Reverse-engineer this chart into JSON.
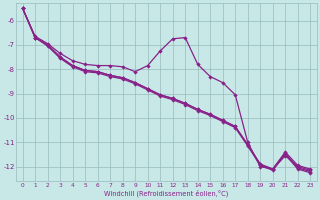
{
  "xlabel": "Windchill (Refroidissement éolien,°C)",
  "line_color": "#882288",
  "bg_color": "#c8e8e8",
  "grid_color": "#99bbbb",
  "xlim": [
    -0.5,
    23.5
  ],
  "ylim": [
    -12.6,
    -5.3
  ],
  "xticks": [
    0,
    1,
    2,
    3,
    4,
    5,
    6,
    7,
    8,
    9,
    10,
    11,
    12,
    13,
    14,
    15,
    16,
    17,
    18,
    19,
    20,
    21,
    22,
    23
  ],
  "yticks": [
    -12,
    -11,
    -10,
    -9,
    -8,
    -7,
    -6
  ],
  "series": [
    [
      -5.5,
      -6.7,
      -7.0,
      -7.5,
      -7.85,
      -8.05,
      -8.1,
      -8.25,
      -8.35,
      -8.55,
      -8.8,
      -9.05,
      -9.2,
      -9.4,
      -9.65,
      -9.85,
      -10.1,
      -10.35,
      -11.1,
      -11.9,
      -12.1,
      -11.55,
      -12.0,
      -12.15
    ],
    [
      -5.5,
      -6.7,
      -7.0,
      -7.5,
      -7.85,
      -8.05,
      -8.1,
      -8.25,
      -8.35,
      -8.55,
      -8.8,
      -9.05,
      -9.2,
      -9.4,
      -9.65,
      -9.85,
      -10.1,
      -10.35,
      -11.1,
      -11.9,
      -12.1,
      -11.45,
      -12.05,
      -12.2
    ],
    [
      -5.5,
      -6.7,
      -7.05,
      -7.55,
      -7.9,
      -8.1,
      -8.15,
      -8.3,
      -8.4,
      -8.6,
      -8.85,
      -9.1,
      -9.25,
      -9.45,
      -9.7,
      -9.9,
      -10.15,
      -10.4,
      -11.15,
      -11.95,
      -12.15,
      -11.5,
      -12.1,
      -12.25
    ],
    [
      -5.5,
      -6.65,
      -6.95,
      -7.35,
      -7.65,
      -7.8,
      -7.85,
      -7.85,
      -7.9,
      -8.1,
      -7.85,
      -7.25,
      -6.75,
      -6.7,
      -7.8,
      -8.3,
      -8.55,
      -9.05,
      -11.0,
      -12.0,
      -12.1,
      -11.4,
      -11.95,
      -12.1
    ]
  ]
}
